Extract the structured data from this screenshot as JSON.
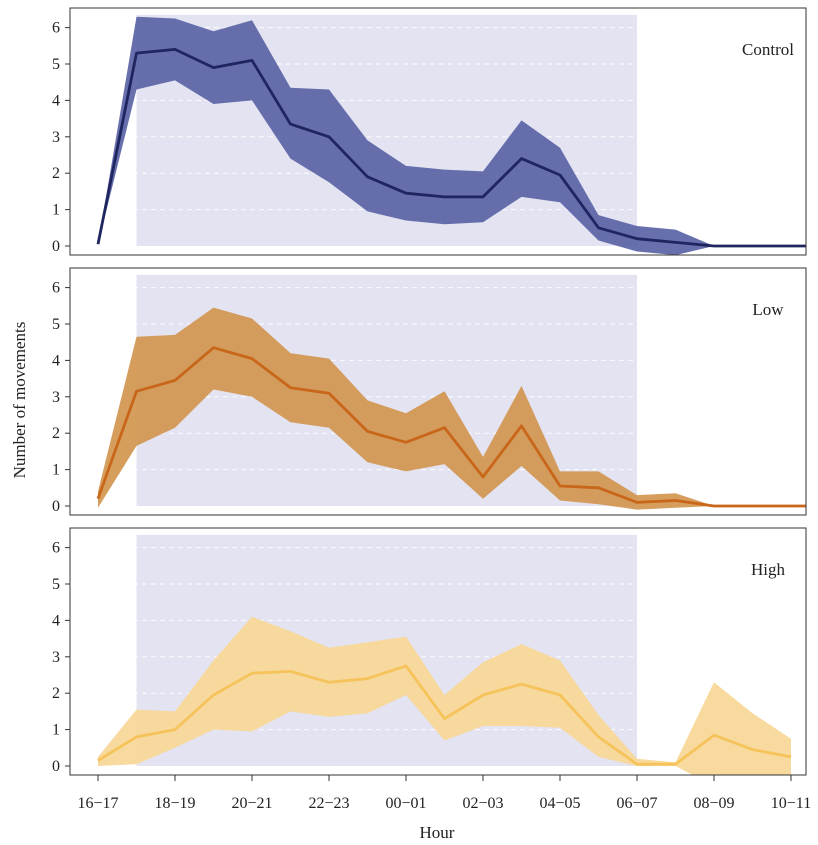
{
  "chart_data": {
    "type": "line",
    "xlabel": "Hour",
    "ylabel": "Number of movements",
    "x_tick_labels": [
      "16−17",
      "18−19",
      "20−21",
      "22−23",
      "00−01",
      "02−03",
      "04−05",
      "06−07",
      "08−09",
      "10−11"
    ],
    "x_tick_indices": [
      0,
      2,
      4,
      6,
      8,
      10,
      12,
      14,
      16,
      18
    ],
    "ylim": [
      0,
      6.4
    ],
    "y_ticks": [
      0,
      1,
      2,
      3,
      4,
      5,
      6
    ],
    "grid": true,
    "dark_period": {
      "start_index": 1,
      "end_index": 14,
      "color": "#e3e3f2"
    },
    "panels": [
      {
        "label": "Control",
        "line_color": "#1f255e",
        "band_color": "#5a64a5",
        "mean": [
          0.05,
          5.3,
          5.4,
          4.9,
          5.1,
          3.35,
          3.0,
          1.9,
          1.45,
          1.35,
          1.35,
          2.4,
          1.95,
          0.5,
          0.2,
          0.1,
          0.0,
          0.0,
          0.0,
          0.0
        ],
        "lower": [
          0.05,
          4.3,
          4.55,
          3.9,
          4.0,
          2.4,
          1.75,
          0.95,
          0.7,
          0.6,
          0.65,
          1.35,
          1.2,
          0.15,
          -0.15,
          -0.25,
          0.0,
          0.0,
          0.0,
          0.0
        ],
        "upper": [
          0.05,
          6.3,
          6.25,
          5.9,
          6.2,
          4.35,
          4.3,
          2.9,
          2.2,
          2.1,
          2.05,
          3.45,
          2.7,
          0.85,
          0.55,
          0.45,
          0.0,
          0.0,
          0.0,
          0.0
        ]
      },
      {
        "label": "Low",
        "line_color": "#c86619",
        "band_color": "#d3964f",
        "mean": [
          0.2,
          3.15,
          3.45,
          4.35,
          4.05,
          3.25,
          3.1,
          2.05,
          1.75,
          2.15,
          0.8,
          2.2,
          0.55,
          0.5,
          0.1,
          0.15,
          0.0,
          0.0,
          0.0,
          0.0
        ],
        "lower": [
          -0.05,
          1.65,
          2.15,
          3.2,
          3.0,
          2.3,
          2.15,
          1.2,
          0.95,
          1.15,
          0.2,
          1.1,
          0.15,
          0.05,
          -0.1,
          -0.05,
          0.0,
          0.0,
          0.0,
          0.0
        ],
        "upper": [
          0.4,
          4.65,
          4.7,
          5.45,
          5.15,
          4.2,
          4.05,
          2.9,
          2.55,
          3.15,
          1.35,
          3.3,
          0.95,
          0.95,
          0.3,
          0.35,
          0.0,
          0.0,
          0.0,
          0.0
        ]
      },
      {
        "label": "High",
        "line_color": "#f6c35b",
        "band_color": "#f8d796",
        "mean": [
          0.15,
          0.8,
          1.0,
          1.95,
          2.55,
          2.6,
          2.3,
          2.4,
          2.75,
          1.3,
          1.95,
          2.25,
          1.95,
          0.8,
          0.05,
          0.05,
          0.85,
          0.45,
          0.25,
          null
        ],
        "lower": [
          0.0,
          0.05,
          0.5,
          1.0,
          0.95,
          1.5,
          1.35,
          1.45,
          1.95,
          0.7,
          1.1,
          1.1,
          1.05,
          0.25,
          0.0,
          0.0,
          -0.55,
          -0.55,
          -0.3,
          null
        ],
        "upper": [
          0.25,
          1.55,
          1.5,
          2.9,
          4.1,
          3.7,
          3.25,
          3.4,
          3.55,
          1.95,
          2.85,
          3.35,
          2.9,
          1.4,
          0.2,
          0.1,
          2.3,
          1.45,
          0.75,
          null
        ]
      }
    ]
  }
}
